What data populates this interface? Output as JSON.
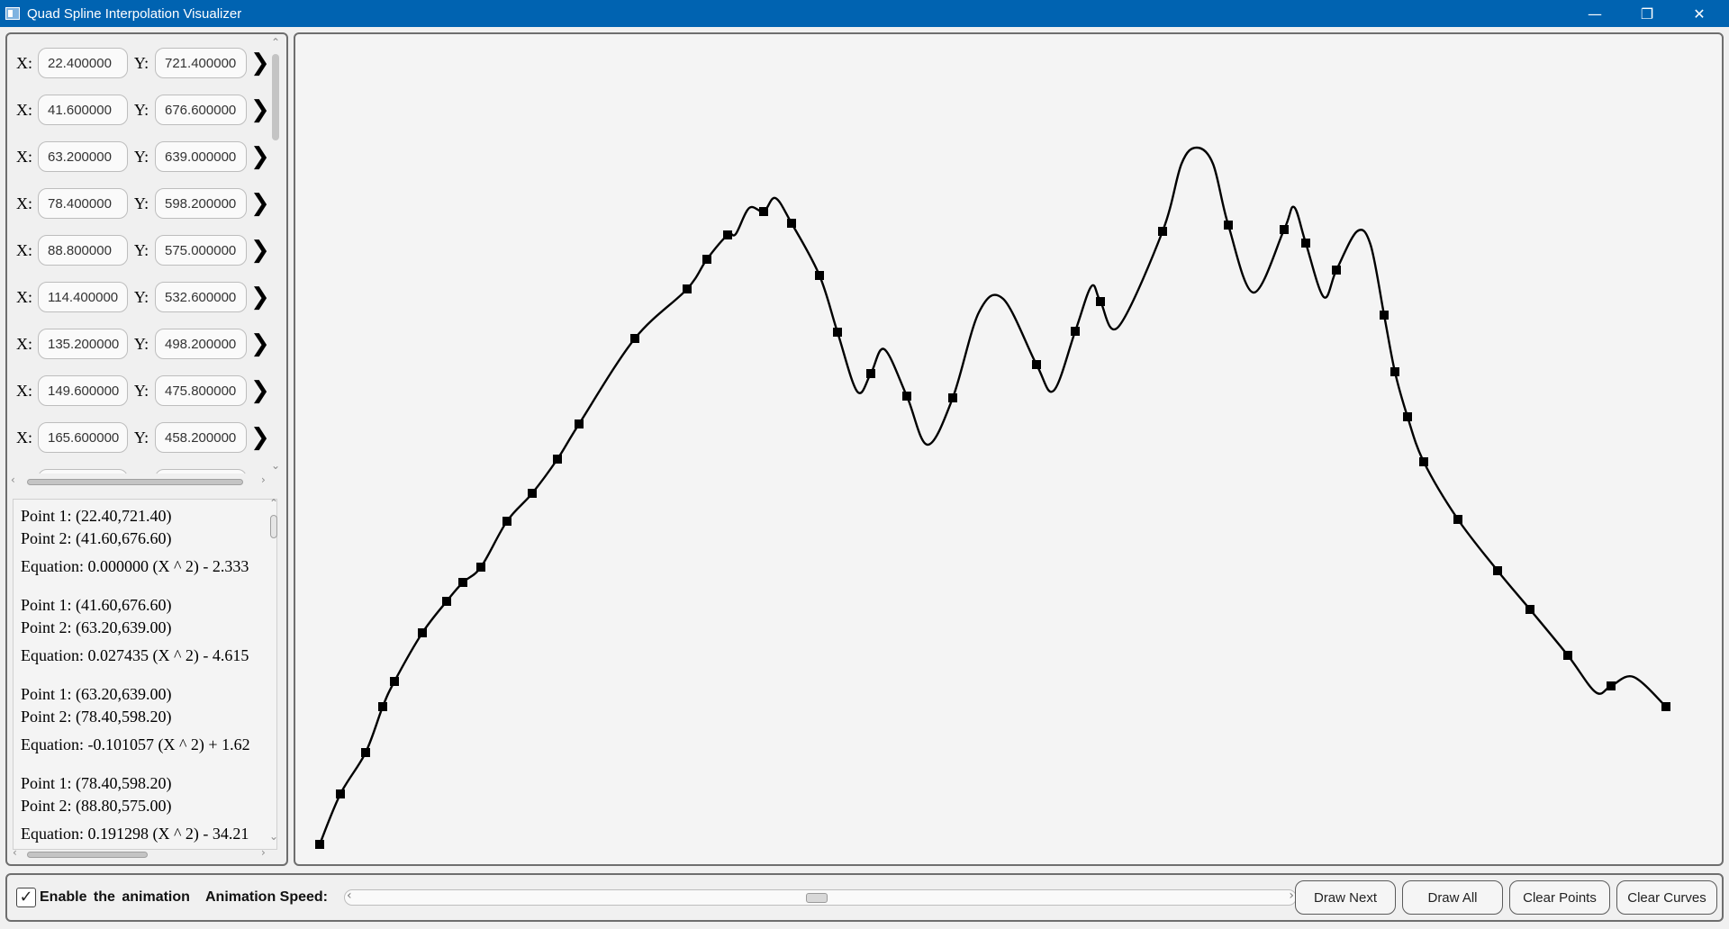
{
  "window": {
    "title": "Quad Spline Interpolation Visualizer",
    "controls": {
      "minimize": "—",
      "restore": "❐",
      "close": "✕"
    }
  },
  "points_list": {
    "x_label": "X:",
    "y_label": "Y:",
    "arrow": "❯",
    "rows": [
      {
        "x": "22.400000",
        "y": "721.400000"
      },
      {
        "x": "41.600000",
        "y": "676.600000"
      },
      {
        "x": "63.200000",
        "y": "639.000000"
      },
      {
        "x": "78.400000",
        "y": "598.200000"
      },
      {
        "x": "88.800000",
        "y": "575.000000"
      },
      {
        "x": "114.400000",
        "y": "532.600000"
      },
      {
        "x": "135.200000",
        "y": "498.200000"
      },
      {
        "x": "149.600000",
        "y": "475.800000"
      },
      {
        "x": "165.600000",
        "y": "458.200000"
      }
    ]
  },
  "equations_list": {
    "lines": [
      {
        "text": "Point 1: (22.40,721.40)"
      },
      {
        "text": "Point 2: (41.60,676.60)"
      },
      {
        "text": "Equation: 0.000000 (X ^ 2)  - 2.333"
      },
      {
        "text": "Point 1: (41.60,676.60)"
      },
      {
        "text": "Point 2: (63.20,639.00)"
      },
      {
        "text": "Equation: 0.027435 (X ^ 2)  - 4.615"
      },
      {
        "text": "Point 1: (63.20,639.00)"
      },
      {
        "text": "Point 2: (78.40,598.20)"
      },
      {
        "text": "Equation: -0.101057 (X ^ 2)  + 1.62"
      },
      {
        "text": "Point 1: (78.40,598.20)"
      },
      {
        "text": "Point 2: (88.80,575.00)"
      },
      {
        "text": "Equation: 0.191298 (X ^ 2)  - 34.21"
      }
    ]
  },
  "canvas": {
    "curve_color": "#000000",
    "point_color": "#000000",
    "background": "#f4f4f4"
  },
  "bottom_bar": {
    "enable_animation_checked": true,
    "check_glyph": "✓",
    "enable_animation_label": "Enable  the animation",
    "speed_label": "Animation Speed:",
    "speed_value": 0.5,
    "buttons": {
      "draw_next": "Draw Next",
      "draw_all": "Draw All",
      "clear_points": "Clear Points",
      "clear_curves": "Clear Curves"
    }
  }
}
